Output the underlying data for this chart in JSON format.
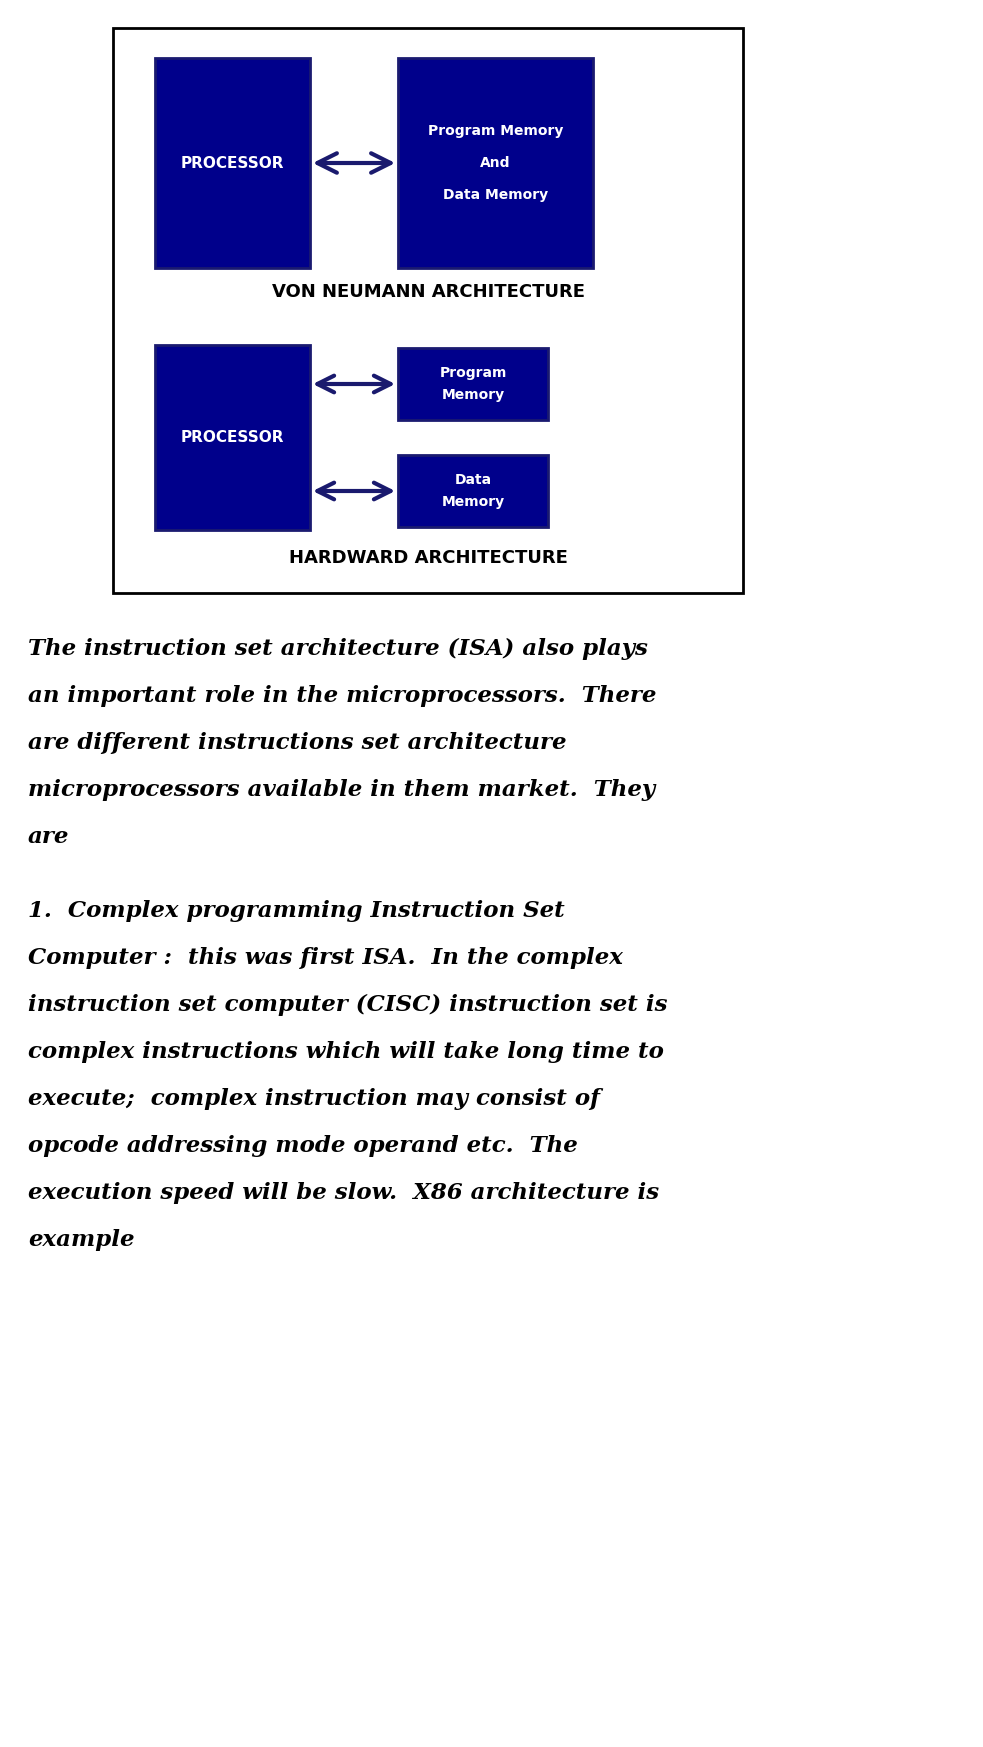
{
  "bg_color": "#ffffff",
  "box_color": "#00008B",
  "box_edge_color": "#1a1a70",
  "text_color_white": "#ffffff",
  "text_color_black": "#000000",
  "arrow_color": "#1a1a6e",
  "diagram_box_bg": "#ffffff",
  "diagram_box_edge": "#000000",
  "von_neumann_label": "VON NEUMANN ARCHITECTURE",
  "harvard_label": "HARDWARD ARCHITECTURE",
  "para1_lines": [
    "The instruction set architecture (ISA) also plays",
    "an important role in the microprocessors.  There",
    "are different instructions set architecture",
    "microprocessors available in them market.  They",
    "are"
  ],
  "para2_lines": [
    "1.  Complex programming Instruction Set",
    "Computer :  this was first ISA.  In the complex",
    "instruction set computer (CISC) instruction set is",
    "complex instructions which will take long time to",
    "execute;  complex instruction may consist of",
    "opcode addressing mode operand etc.  The",
    "execution speed will be slow.  X86 architecture is",
    "example"
  ]
}
